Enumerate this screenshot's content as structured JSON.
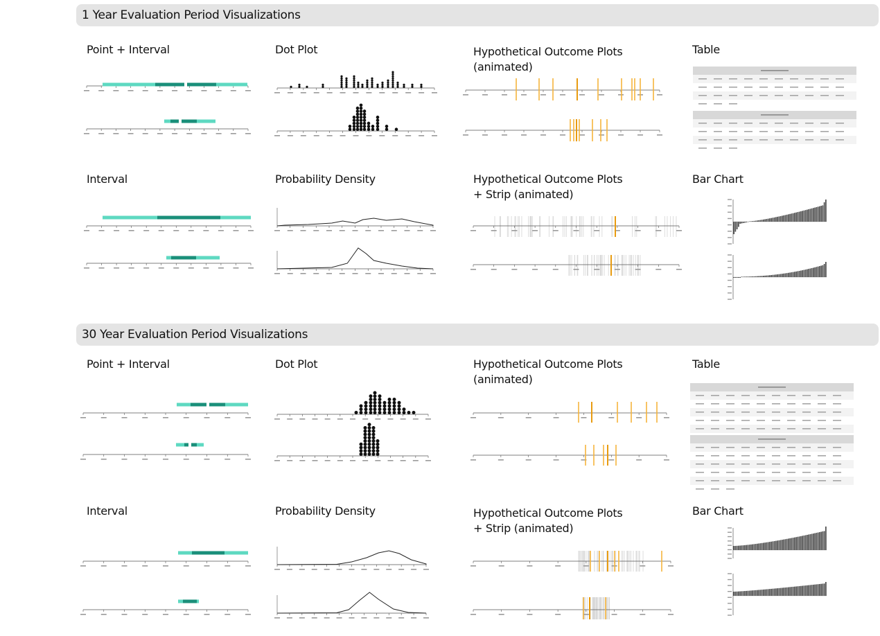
{
  "colors": {
    "interval_light": "#5ed9c1",
    "interval_dark": "#1a8f7a",
    "hop_line": "#f5b43c",
    "hop_dark": "#e89b10",
    "bar": "#444444",
    "axis": "#555555",
    "header_bg": "#e4e4e4"
  },
  "sections": [
    {
      "title": "1 Year Evaluation Period Visualizations",
      "panels": [
        {
          "title_lines": [
            "Point + Interval"
          ]
        },
        {
          "title_lines": [
            "Dot Plot"
          ]
        },
        {
          "title_lines": [
            "Hypothetical Outcome Plots",
            "(animated)"
          ]
        },
        {
          "title_lines": [
            "Table"
          ]
        },
        {
          "title_lines": [
            "Interval"
          ]
        },
        {
          "title_lines": [
            "Probability Density"
          ]
        },
        {
          "title_lines": [
            "Hypothetical Outcome Plots",
            "+ Strip (animated)"
          ]
        },
        {
          "title_lines": [
            "Bar Chart"
          ]
        }
      ]
    },
    {
      "title": "30 Year Evaluation Period Visualizations",
      "panels": [
        {
          "title_lines": [
            "Point + Interval"
          ]
        },
        {
          "title_lines": [
            "Dot Plot"
          ]
        },
        {
          "title_lines": [
            "Hypothetical Outcome Plots",
            "(animated)"
          ]
        },
        {
          "title_lines": [
            "Table"
          ]
        },
        {
          "title_lines": [
            "Interval"
          ]
        },
        {
          "title_lines": [
            "Probability Density"
          ]
        },
        {
          "title_lines": [
            "Hypothetical Outcome Plots",
            "+ Strip (animated)"
          ]
        },
        {
          "title_lines": [
            "Bar Chart"
          ]
        }
      ]
    }
  ]
}
